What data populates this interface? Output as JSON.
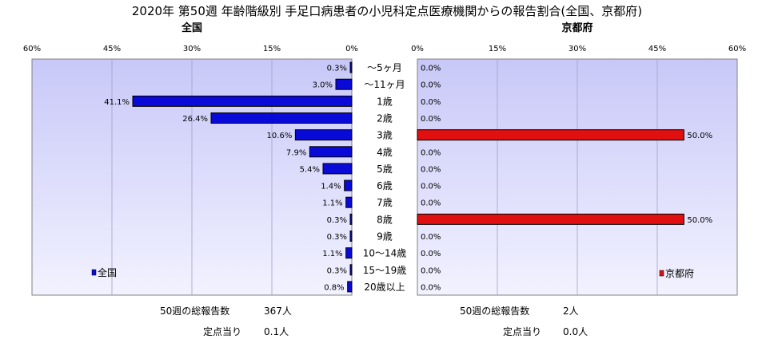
{
  "title": "2020年 第50週 年齢階級別 手足口病患者の小児科定点医療機関からの報告割合(全国、京都府)",
  "chart_data": {
    "type": "bar",
    "orientation": "horizontal",
    "categories": [
      "～5ヶ月",
      "～11ヶ月",
      "1歳",
      "2歳",
      "3歳",
      "4歳",
      "5歳",
      "6歳",
      "7歳",
      "8歳",
      "9歳",
      "10～14歳",
      "15～19歳",
      "20歳以上"
    ],
    "panels": [
      {
        "subtitle": "全国",
        "series_name": "全国",
        "values": [
          0.3,
          3.0,
          41.1,
          26.4,
          10.6,
          7.9,
          5.4,
          1.4,
          1.1,
          0.3,
          0.3,
          1.1,
          0.3,
          0.8
        ],
        "labels": [
          "0.3%",
          "3.0%",
          "41.1%",
          "26.4%",
          "10.6%",
          "7.9%",
          "5.4%",
          "1.4%",
          "1.1%",
          "0.3%",
          "0.3%",
          "1.1%",
          "0.3%",
          "0.8%"
        ],
        "xlim": [
          0,
          60
        ],
        "ticks": [
          "60%",
          "45%",
          "30%",
          "15%",
          "0%"
        ],
        "direction": "reversed",
        "color": "#0a0ad8",
        "legend_position": "bottom-left"
      },
      {
        "subtitle": "京都府",
        "series_name": "京都府",
        "values": [
          0,
          0,
          0,
          0,
          50.0,
          0,
          0,
          0,
          0,
          50.0,
          0,
          0,
          0,
          0
        ],
        "labels": [
          "0.0%",
          "0.0%",
          "0.0%",
          "0.0%",
          "50.0%",
          "0.0%",
          "0.0%",
          "0.0%",
          "0.0%",
          "50.0%",
          "0.0%",
          "0.0%",
          "0.0%",
          "0.0%"
        ],
        "xlim": [
          0,
          60
        ],
        "ticks": [
          "0%",
          "15%",
          "30%",
          "45%",
          "60%"
        ],
        "direction": "normal",
        "color": "#e01010",
        "legend_position": "bottom-right"
      }
    ],
    "grid": true
  },
  "footer": {
    "left": {
      "total_label": "50週の総報告数",
      "total_value": "367人",
      "per_label": "定点当り",
      "per_value": "0.1人"
    },
    "right": {
      "total_label": "50週の総報告数",
      "total_value": "2人",
      "per_label": "定点当り",
      "per_value": "0.0人"
    }
  },
  "colors": {
    "plot_bg_top": "#c8c8f8",
    "plot_bg_bottom": "#f2f2ff",
    "national_bar": "#0a0ad8",
    "kyoto_bar": "#e01010"
  }
}
